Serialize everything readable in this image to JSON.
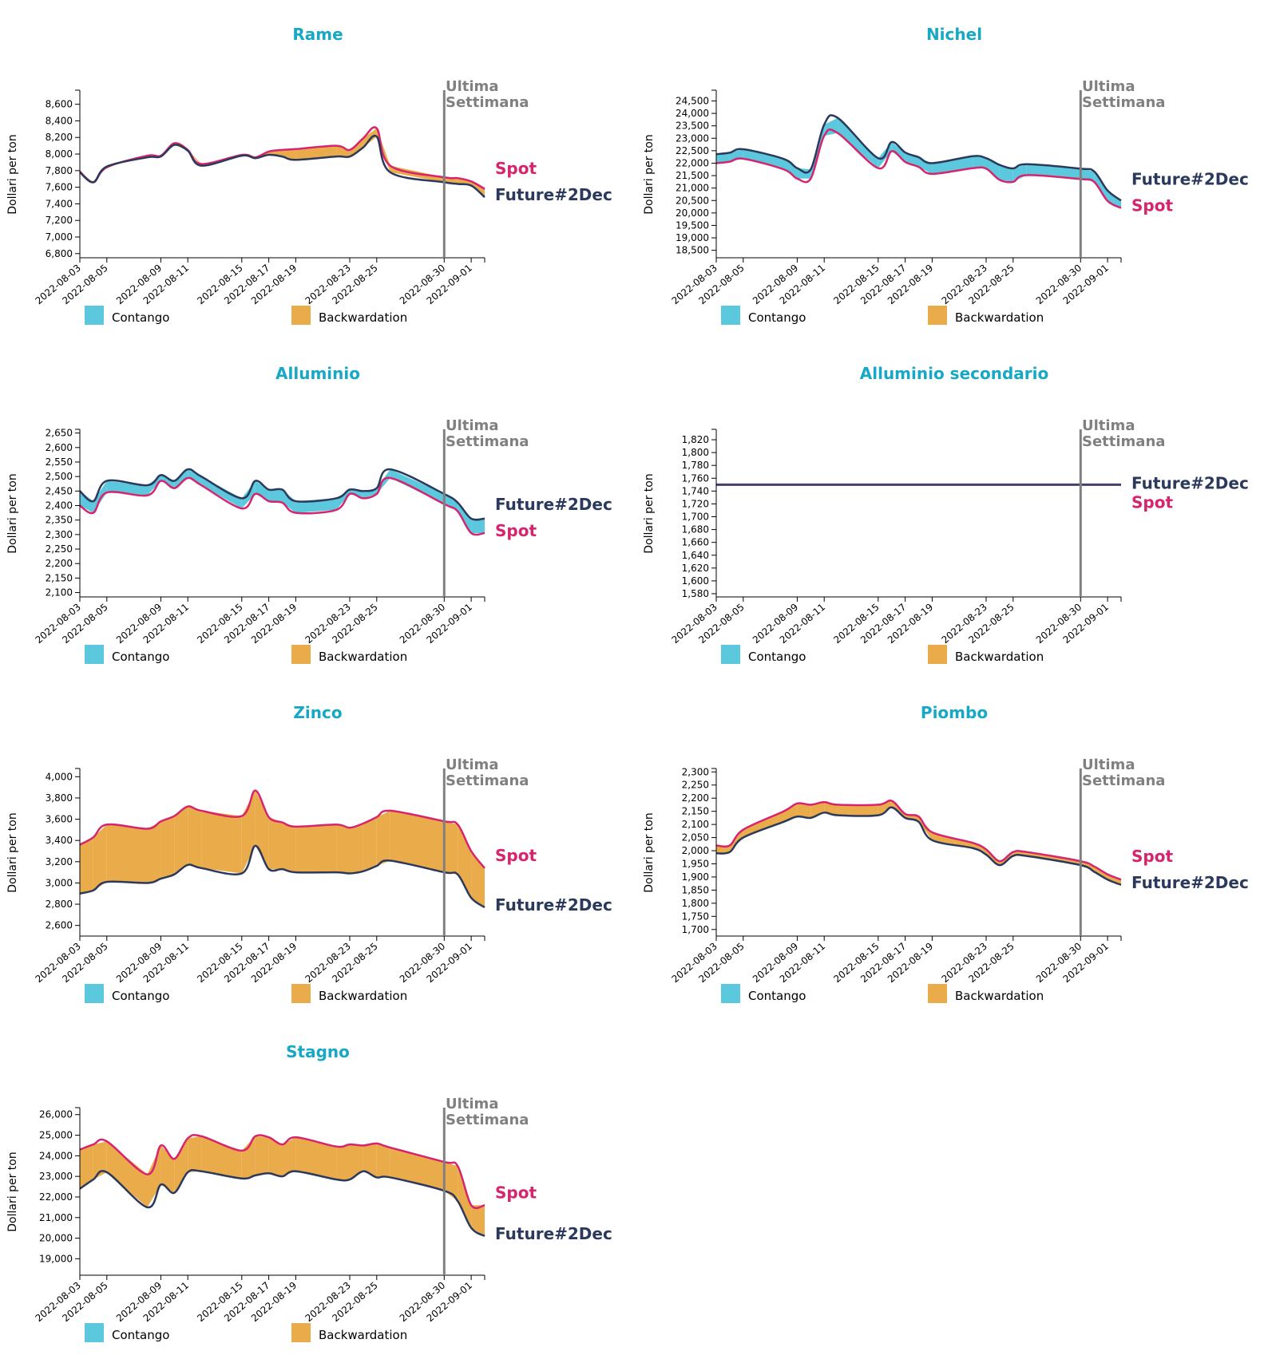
{
  "page": {
    "dates": [
      "2022-08-03",
      "2022-08-04",
      "2022-08-05",
      "2022-08-08",
      "2022-08-09",
      "2022-08-10",
      "2022-08-11",
      "2022-08-12",
      "2022-08-15",
      "2022-08-16",
      "2022-08-17",
      "2022-08-18",
      "2022-08-19",
      "2022-08-22",
      "2022-08-23",
      "2022-08-24",
      "2022-08-25",
      "2022-08-26",
      "2022-08-30",
      "2022-08-31",
      "2022-09-01",
      "2022-09-02"
    ],
    "tick_labels": [
      "2022-08-03",
      "2022-08-05",
      "2022-08-09",
      "2022-08-11",
      "2022-08-15",
      "2022-08-17",
      "2022-08-19",
      "2022-08-23",
      "2022-08-25",
      "2022-08-30",
      "2022-09-01"
    ],
    "ylabel": "Dollari per ton",
    "marker_label": [
      "Ultima",
      "Settimana"
    ],
    "marker_date": "2022-08-30",
    "legend": {
      "contango": "Contango",
      "backwardation": "Backwardation"
    },
    "series_names": {
      "spot": "Spot",
      "future": "Future#2Dec"
    },
    "colors": {
      "title": "#17a8c6",
      "spot": "#d6256e",
      "future": "#2b3a5c",
      "contango": "#5bc8de",
      "backwardation": "#eaab4b",
      "marker": "#808080",
      "flat": "#4a3d6b"
    }
  },
  "chart_data": [
    {
      "type": "line",
      "title": "Rame",
      "ylim": [
        6750,
        8760
      ],
      "yticks": [
        6800,
        7000,
        7200,
        7400,
        7600,
        7800,
        8000,
        8200,
        8400,
        8600
      ],
      "spot": [
        7790,
        7660,
        7840,
        7980,
        7980,
        8130,
        8050,
        7880,
        7990,
        7960,
        8030,
        8050,
        8060,
        8100,
        8050,
        8190,
        8310,
        7860,
        7720,
        7710,
        7670,
        7580
      ],
      "future": [
        7780,
        7660,
        7850,
        7960,
        7970,
        8110,
        8040,
        7860,
        7980,
        7950,
        7990,
        7970,
        7930,
        7970,
        7970,
        8080,
        8210,
        7780,
        7660,
        7640,
        7620,
        7480
      ]
    },
    {
      "type": "line",
      "title": "Nichel",
      "ylim": [
        18200,
        24900
      ],
      "yticks": [
        18500,
        19000,
        19500,
        20000,
        20500,
        21000,
        21500,
        22000,
        22500,
        23000,
        23500,
        24000,
        24500
      ],
      "spot": [
        22000,
        22060,
        22180,
        21750,
        21380,
        21380,
        23100,
        23210,
        21800,
        22480,
        22050,
        21850,
        21570,
        21800,
        21780,
        21330,
        21250,
        21520,
        21360,
        21250,
        20480,
        20200
      ],
      "future": [
        22360,
        22420,
        22560,
        22170,
        21800,
        21750,
        23550,
        23820,
        22200,
        22850,
        22430,
        22240,
        22000,
        22280,
        22200,
        21930,
        21790,
        21960,
        21780,
        21670,
        20900,
        20500
      ]
    },
    {
      "type": "line",
      "title": "Alluminio",
      "ylim": [
        2085,
        2660
      ],
      "yticks": [
        2100,
        2150,
        2200,
        2250,
        2300,
        2350,
        2400,
        2450,
        2500,
        2550,
        2600,
        2650
      ],
      "spot": [
        2400,
        2375,
        2445,
        2435,
        2485,
        2460,
        2495,
        2470,
        2390,
        2440,
        2415,
        2410,
        2375,
        2385,
        2440,
        2425,
        2440,
        2495,
        2405,
        2380,
        2305,
        2305
      ],
      "future": [
        2450,
        2415,
        2485,
        2470,
        2505,
        2485,
        2525,
        2500,
        2425,
        2485,
        2455,
        2455,
        2415,
        2425,
        2455,
        2450,
        2460,
        2525,
        2440,
        2410,
        2355,
        2355
      ]
    },
    {
      "type": "line",
      "title": "Alluminio secondario",
      "ylim": [
        1575,
        1835
      ],
      "yticks": [
        1580,
        1600,
        1620,
        1640,
        1660,
        1680,
        1700,
        1720,
        1740,
        1760,
        1780,
        1800,
        1820
      ],
      "spot": [
        1750,
        1750,
        1750,
        1750,
        1750,
        1750,
        1750,
        1750,
        1750,
        1750,
        1750,
        1750,
        1750,
        1750,
        1750,
        1750,
        1750,
        1750,
        1750,
        1750,
        1750,
        1750
      ],
      "future": [
        1750,
        1750,
        1750,
        1750,
        1750,
        1750,
        1750,
        1750,
        1750,
        1750,
        1750,
        1750,
        1750,
        1750,
        1750,
        1750,
        1750,
        1750,
        1750,
        1750,
        1750,
        1750
      ]
    },
    {
      "type": "line",
      "title": "Zinco",
      "ylim": [
        2500,
        4070
      ],
      "yticks": [
        2600,
        2800,
        3000,
        3200,
        3400,
        3600,
        3800,
        4000
      ],
      "spot": [
        3360,
        3430,
        3550,
        3510,
        3580,
        3630,
        3720,
        3680,
        3630,
        3870,
        3620,
        3570,
        3530,
        3550,
        3520,
        3560,
        3620,
        3680,
        3580,
        3550,
        3300,
        3140
      ],
      "future": [
        2900,
        2930,
        3010,
        3000,
        3040,
        3080,
        3170,
        3140,
        3090,
        3350,
        3130,
        3130,
        3100,
        3100,
        3090,
        3110,
        3160,
        3210,
        3100,
        3080,
        2860,
        2770
      ]
    },
    {
      "type": "line",
      "title": "Piombo",
      "ylim": [
        1675,
        2310
      ],
      "yticks": [
        1700,
        1750,
        1800,
        1850,
        1900,
        1950,
        2000,
        2050,
        2100,
        2150,
        2200,
        2250,
        2300
      ],
      "spot": [
        2020,
        2020,
        2080,
        2150,
        2180,
        2175,
        2185,
        2175,
        2175,
        2190,
        2140,
        2130,
        2070,
        2030,
        2005,
        1960,
        1995,
        1995,
        1960,
        1940,
        1910,
        1890
      ],
      "future": [
        1990,
        1995,
        2050,
        2110,
        2130,
        2125,
        2145,
        2135,
        2135,
        2165,
        2125,
        2110,
        2040,
        2010,
        1985,
        1945,
        1980,
        1980,
        1945,
        1920,
        1890,
        1870
      ]
    },
    {
      "type": "line",
      "title": "Stagno",
      "ylim": [
        18200,
        26300
      ],
      "yticks": [
        19000,
        20000,
        21000,
        22000,
        23000,
        24000,
        25000,
        26000
      ],
      "spot": [
        24300,
        24550,
        24700,
        23100,
        24500,
        23850,
        24850,
        24950,
        24250,
        24950,
        24900,
        24550,
        24900,
        24450,
        24550,
        24500,
        24600,
        24400,
        23700,
        23500,
        21600,
        21600
      ],
      "future": [
        22400,
        22850,
        23200,
        21500,
        22600,
        22200,
        23200,
        23250,
        22900,
        23050,
        23150,
        23000,
        23250,
        22850,
        22850,
        23250,
        22950,
        22950,
        22300,
        21800,
        20500,
        20100
      ]
    }
  ]
}
